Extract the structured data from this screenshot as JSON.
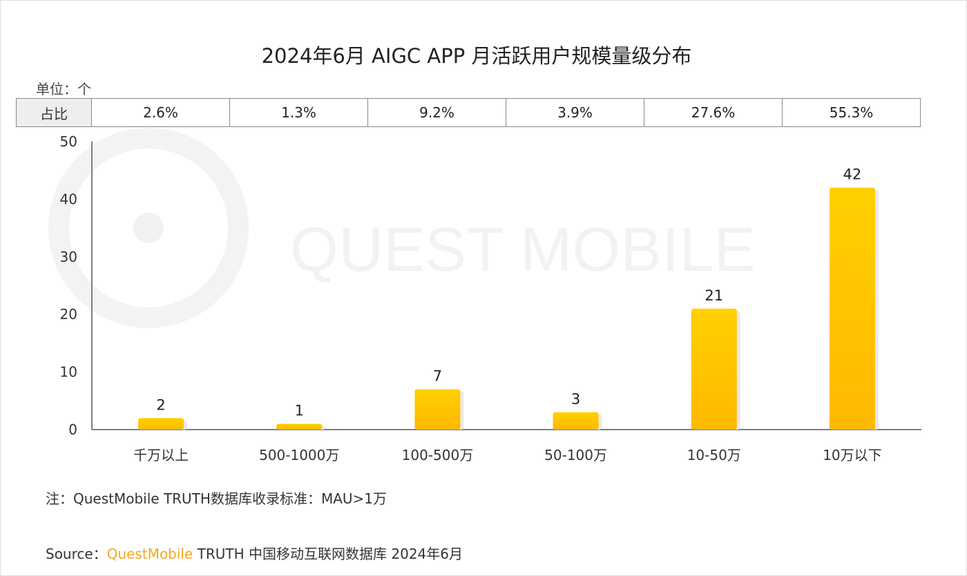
{
  "chart_data": {
    "type": "bar",
    "title": "2024年6月 AIGC APP 月活跃用户规模量级分布",
    "unit_label": "单位：个",
    "share_row_label": "占比",
    "categories": [
      "千万以上",
      "500-1000万",
      "100-500万",
      "50-100万",
      "10-50万",
      "10万以下"
    ],
    "values": [
      2,
      1,
      7,
      3,
      21,
      42
    ],
    "value_labels": [
      "2",
      "1",
      "7",
      "3",
      "21",
      "42"
    ],
    "shares": [
      "2.6%",
      "1.3%",
      "9.2%",
      "3.9%",
      "27.6%",
      "55.3%"
    ],
    "yticks": [
      "0",
      "10",
      "20",
      "30",
      "40",
      "50"
    ],
    "ylim": [
      0,
      50
    ],
    "xlabel": "",
    "ylabel": "",
    "grid": false,
    "bar_color_top": "#FFD000",
    "bar_color_bottom": "#FFB800"
  },
  "watermark": "QUEST MOBILE",
  "note": "注：QuestMobile TRUTH数据库收录标准：MAU>1万",
  "source": {
    "prefix": "Source：",
    "brand": "QuestMobile",
    "rest": " TRUTH 中国移动互联网数据库 2024年6月"
  }
}
